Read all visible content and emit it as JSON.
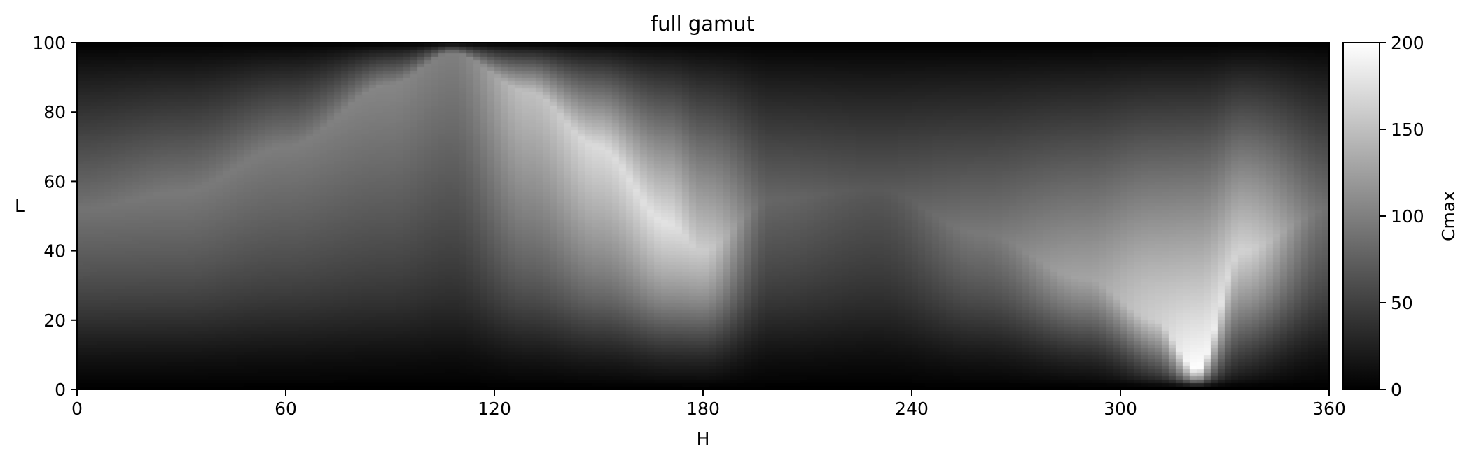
{
  "chart_data": {
    "type": "heatmap",
    "title": "full gamut",
    "xlabel": "H",
    "ylabel": "L",
    "xlim": [
      0,
      360
    ],
    "ylim": [
      0,
      100
    ],
    "xticks": [
      0,
      60,
      120,
      180,
      240,
      300,
      360
    ],
    "yticks": [
      0,
      20,
      40,
      60,
      80,
      100
    ],
    "colormap": "gray",
    "colorbar": {
      "label": "Cmax",
      "range": [
        0,
        200
      ],
      "ticks": [
        0,
        50,
        100,
        150,
        200
      ]
    },
    "grid": false,
    "resolution": {
      "h_step": 2,
      "l_step": 1
    },
    "gamut_shape": {
      "peak_hue_at_l100": 108,
      "sharp_ridge_hue_at_l0": 322,
      "note_points": [
        {
          "H": 108,
          "L": 99,
          "Cmax": 100
        },
        {
          "H": 150,
          "L": 68,
          "Cmax": 170
        },
        {
          "H": 175,
          "L": 45,
          "Cmax": 175
        },
        {
          "H": 322,
          "L": 5,
          "Cmax": 200
        },
        {
          "H": 330,
          "L": 55,
          "Cmax": 160
        },
        {
          "H": 0,
          "L": 50,
          "Cmax": 85
        },
        {
          "H": 240,
          "L": 90,
          "Cmax": 20
        }
      ]
    }
  }
}
